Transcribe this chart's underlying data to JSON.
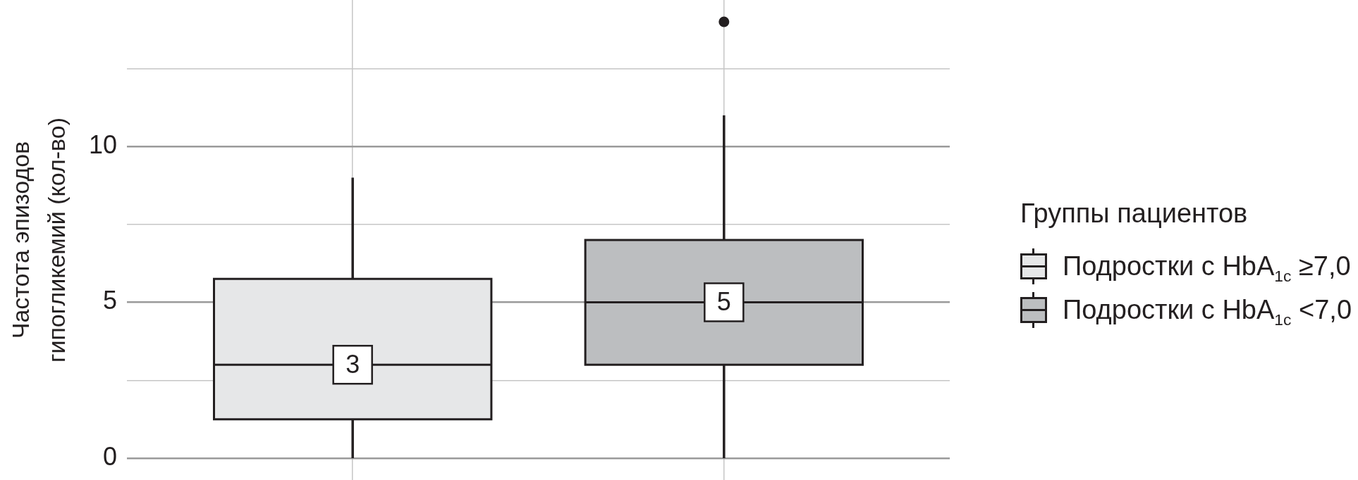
{
  "chart_data": {
    "type": "box",
    "ylabel": "Частота эпизодов гипогликемий (кол-во)",
    "legend_title": "Группы пациентов",
    "categories": [
      null,
      null
    ],
    "series": [
      {
        "name": "Подростки с HbA$_{1c}$ ≥7,0",
        "color": "#e6e7e8",
        "boxes": [
          {
            "low": 0,
            "q1": 1.25,
            "median": 3,
            "q3": 5.75,
            "high": 9
          },
          null
        ],
        "value_labels": [
          "3",
          null
        ]
      },
      {
        "name": "Подростки с HbA$_{1c}$ <7,0",
        "color": "#bcbec0",
        "boxes": [
          null,
          {
            "low": 0,
            "q1": 3,
            "median": 5,
            "q3": 7,
            "high": 11,
            "outliers": [
              14
            ]
          }
        ],
        "value_labels": [
          null,
          "5"
        ]
      }
    ],
    "ylim": [
      -0.7,
      14.7
    ],
    "yticks": [
      0,
      {
        "value": 2.5,
        "label": null
      },
      5,
      {
        "value": 7.5,
        "label": null
      },
      10,
      {
        "value": 12.5,
        "label": null
      }
    ],
    "grid": true,
    "legend": "right"
  }
}
